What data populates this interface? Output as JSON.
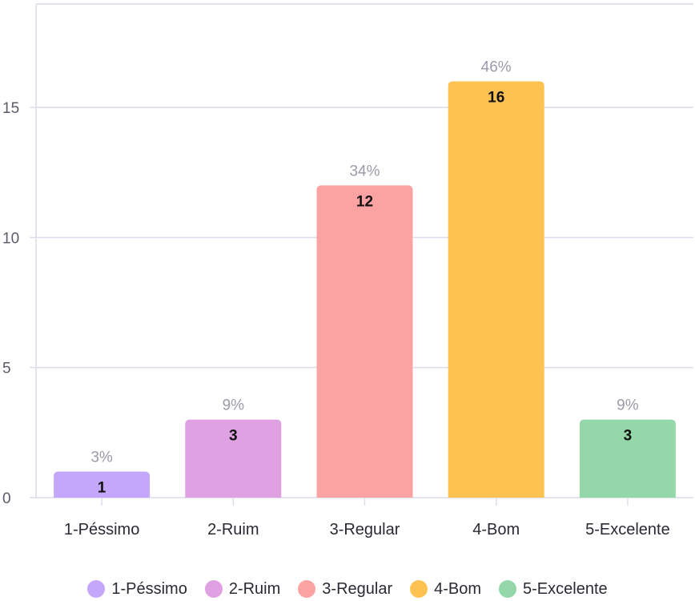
{
  "chart_data": {
    "type": "bar",
    "categories": [
      "1-Péssimo",
      "2-Ruim",
      "3-Regular",
      "4-Bom",
      "5-Excelente"
    ],
    "values": [
      1,
      3,
      12,
      16,
      3
    ],
    "percent_labels": [
      "3%",
      "9%",
      "34%",
      "46%",
      "9%"
    ],
    "colors": [
      "#c4a6fb",
      "#e0a1e3",
      "#fba2a3",
      "#fec253",
      "#94d8aa"
    ],
    "yticks": [
      0,
      5,
      10,
      15
    ],
    "ylim": [
      0,
      18.5
    ],
    "grid": true,
    "legend_placement": "bottom",
    "title": "",
    "xlabel": "",
    "ylabel": ""
  }
}
